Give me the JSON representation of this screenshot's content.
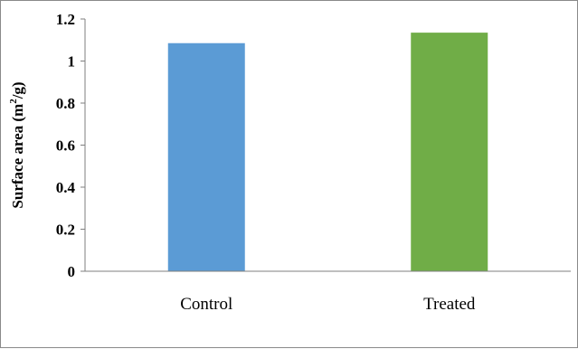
{
  "chart_data": {
    "type": "bar",
    "categories": [
      "Control",
      "Treated"
    ],
    "values": [
      1.085,
      1.135
    ],
    "colors": [
      "#5b9bd5",
      "#70ad47"
    ],
    "title": "",
    "xlabel": "",
    "ylabel": "Surface area (m²/g)",
    "ylabel_parts": {
      "before": "Surface area (m",
      "sup": "2",
      "after": "/g)"
    },
    "ylim": [
      0,
      1.2
    ],
    "yticks": [
      "0",
      "0.2",
      "0.4",
      "0.6",
      "0.8",
      "1",
      "1.2"
    ],
    "ytick_values": [
      0,
      0.2,
      0.4,
      0.6,
      0.8,
      1,
      1.2
    ],
    "grid": false,
    "legend": "none"
  }
}
